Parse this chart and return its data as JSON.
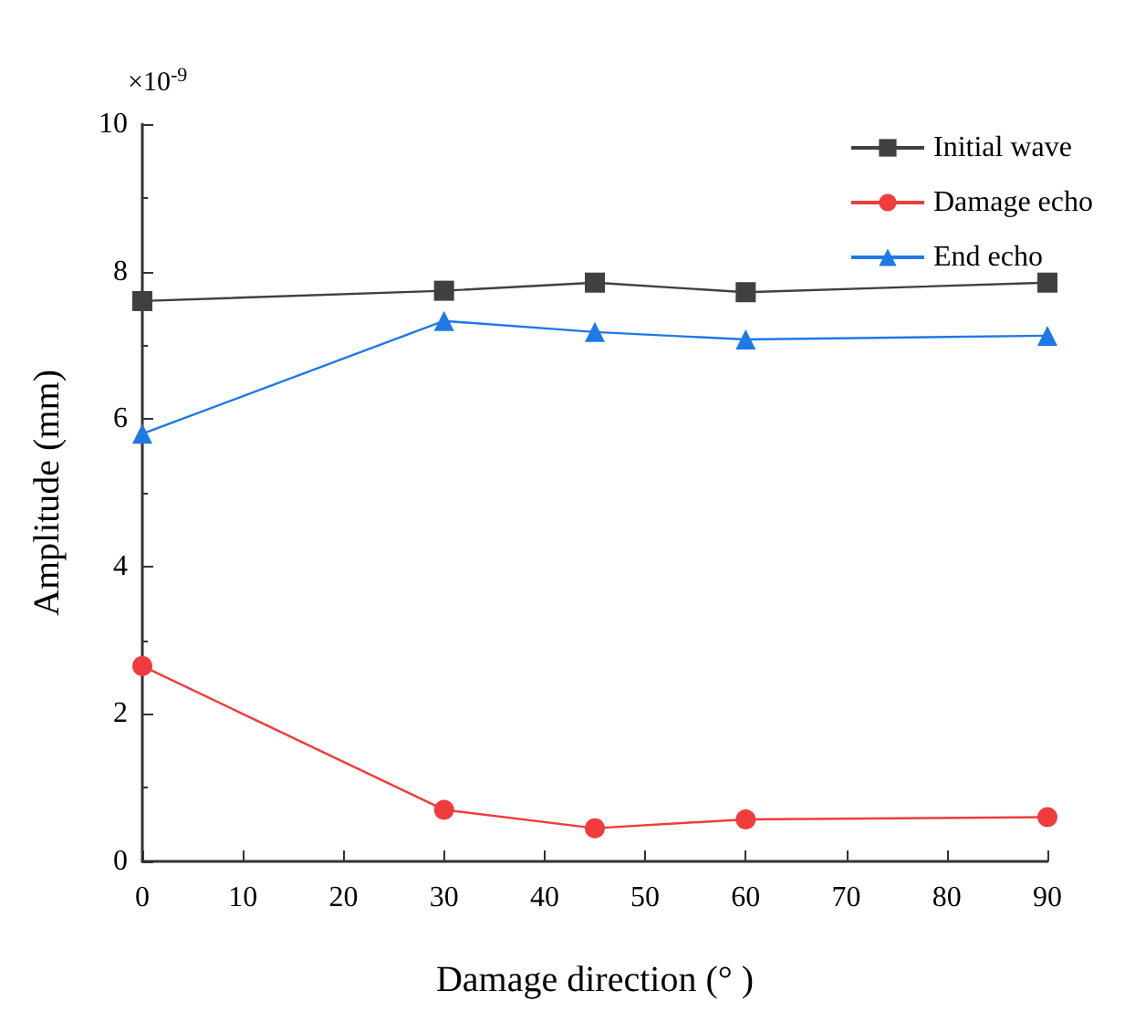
{
  "chart_data": {
    "type": "line",
    "xlabel": "Damage direction (° )",
    "ylabel": "Amplitude (mm)",
    "annotations": [
      "×10$^{-9}$"
    ],
    "x": [
      0,
      30,
      45,
      60,
      90
    ],
    "series": [
      {
        "name": "Initial wave",
        "color": "#404040",
        "marker": "square",
        "values": [
          7.6,
          7.74,
          7.85,
          7.72,
          7.85
        ]
      },
      {
        "name": "Damage echo",
        "color": "#f03c3c",
        "marker": "circle",
        "values": [
          2.65,
          0.7,
          0.45,
          0.57,
          0.6
        ]
      },
      {
        "name": "End echo",
        "color": "#1e78e6",
        "marker": "triangle",
        "values": [
          5.8,
          7.33,
          7.18,
          7.08,
          7.13
        ]
      }
    ],
    "xlim": [
      0,
      90
    ],
    "xticks": [
      0,
      10,
      20,
      30,
      40,
      50,
      60,
      70,
      80,
      90
    ],
    "ylim": [
      0,
      10
    ],
    "yticks": [
      0,
      2,
      4,
      6,
      8,
      10
    ],
    "grid": false,
    "legend": "top right"
  }
}
